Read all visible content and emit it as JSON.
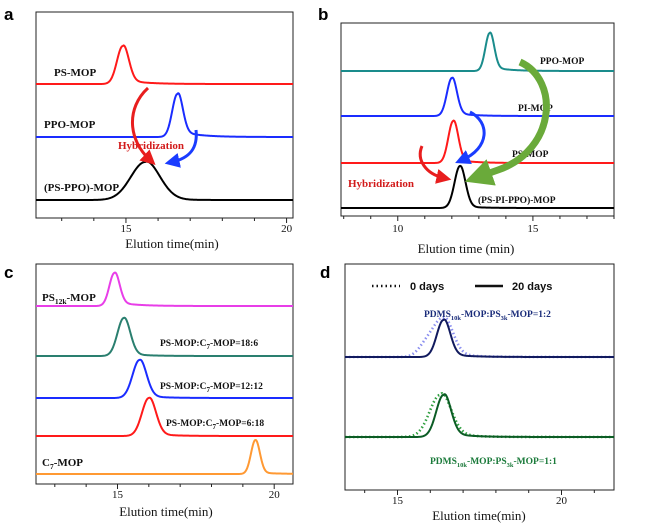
{
  "chart_data": [
    {
      "panel": "a",
      "type": "line",
      "xlabel": "Elution time(min)",
      "xlim": [
        12.2,
        20.2
      ],
      "xticks": [
        "15",
        "20"
      ],
      "xtick_values": [
        15,
        20
      ],
      "annotation": "Hybridization",
      "series": [
        {
          "name": "PS-MOP",
          "color": "#ff1a1a",
          "peak_x": 14.9,
          "width": 0.18,
          "tail": 0.12
        },
        {
          "name": "PPO-MOP",
          "color": "#1a2cff",
          "peak_x": 16.6,
          "width": 0.16,
          "tail": 0.15
        },
        {
          "name": "(PS-PPO)-MOP",
          "color": "#000000",
          "peak_x": 15.6,
          "width": 0.45,
          "tail": 0.05
        }
      ]
    },
    {
      "panel": "b",
      "type": "line",
      "xlabel": "Elution time (min)",
      "xlim": [
        7.9,
        18.0
      ],
      "xticks": [
        "10",
        "15"
      ],
      "xtick_values": [
        10,
        15
      ],
      "annotation": "Hybridization",
      "series": [
        {
          "name": "PPO-MOP",
          "color": "#1a8c8c",
          "peak_x": 13.4,
          "width": 0.16,
          "tail": 0.12
        },
        {
          "name": "PI-MOP",
          "color": "#1a2cff",
          "peak_x": 12.0,
          "width": 0.18,
          "tail": 0.1
        },
        {
          "name": "PS-MOP",
          "color": "#ff1a1a",
          "peak_x": 12.05,
          "width": 0.18,
          "tail": 0.1
        },
        {
          "name": "(PS-PI-PPO)-MOP",
          "color": "#000000",
          "peak_x": 12.3,
          "width": 0.2,
          "tail": 0.05
        }
      ]
    },
    {
      "panel": "c",
      "type": "line",
      "xlabel": "Elution time(min)",
      "xlim": [
        12.4,
        20.6
      ],
      "xticks": [
        "15",
        "20"
      ],
      "xtick_values": [
        15,
        20
      ],
      "series": [
        {
          "name": "PS12k-MOP",
          "label_main": "PS",
          "label_sub": "12k",
          "label_tail": "-MOP",
          "color": "#e83ee8",
          "peak_x": 14.9,
          "width": 0.16,
          "tail": 0.13
        },
        {
          "name": "PS-MOP:C7-MOP=18:6",
          "label_parts": [
            "PS-MOP:C",
            "7",
            "-MOP=18:6"
          ],
          "color": "#2a7f6f",
          "peak_x": 15.2,
          "width": 0.2,
          "tail": 0.07
        },
        {
          "name": "PS-MOP:C7-MOP=12:12",
          "label_parts": [
            "PS-MOP:C",
            "7",
            "-MOP=12:12"
          ],
          "color": "#1a2cff",
          "peak_x": 15.7,
          "width": 0.22,
          "tail": 0.07
        },
        {
          "name": "PS-MOP:C7-MOP=6:18",
          "label_parts": [
            "PS-MOP:C",
            "7",
            "-MOP=6:18"
          ],
          "color": "#ff1a1a",
          "peak_x": 16.0,
          "width": 0.22,
          "tail": 0.07
        },
        {
          "name": "C7-MOP",
          "label_main": "C",
          "label_sub": "7",
          "label_tail": "-MOP",
          "color": "#ff9933",
          "peak_x": 19.4,
          "width": 0.14,
          "tail": 0.05
        }
      ]
    },
    {
      "panel": "d",
      "type": "line",
      "xlabel": "Elution time(min)",
      "xlim": [
        13.4,
        21.6
      ],
      "xticks": [
        "15",
        "20"
      ],
      "xtick_values": [
        15,
        20
      ],
      "legend": [
        "0 days",
        "20 days"
      ],
      "legend_placement": "top",
      "series": [
        {
          "name": "PDMS10k-MOP:PS3k-MOP=1:2 (0 days)",
          "color": "#8a8ef0",
          "style": "dotted",
          "peak_x": 16.4,
          "width": 0.28,
          "shoulder_x": 15.9,
          "tail": 0.14
        },
        {
          "name": "PDMS10k-MOP:PS3k-MOP=1:2 (20 days)",
          "color": "#111a5e",
          "style": "solid",
          "peak_x": 16.4,
          "width": 0.2,
          "tail": 0.1
        },
        {
          "name": "PDMS10k-MOP:PS3k-MOP=1:1 (0 days)",
          "color": "#2e9e3e",
          "style": "dotted",
          "peak_x": 16.3,
          "width": 0.32,
          "tail": 0.14
        },
        {
          "name": "PDMS10k-MOP:PS3k-MOP=1:1 (20 days)",
          "color": "#0b5c24",
          "style": "solid",
          "peak_x": 16.4,
          "width": 0.22,
          "tail": 0.12
        }
      ],
      "labels": [
        {
          "parts": [
            "PDMS",
            "10k",
            "-MOP:PS",
            "3k",
            "-MOP=1:2"
          ],
          "color": "#1a2c7a"
        },
        {
          "parts": [
            "PDMS",
            "10k",
            "-MOP:PS",
            "3k",
            "-MOP=1:1"
          ],
          "color": "#1a7a3a"
        }
      ]
    }
  ]
}
